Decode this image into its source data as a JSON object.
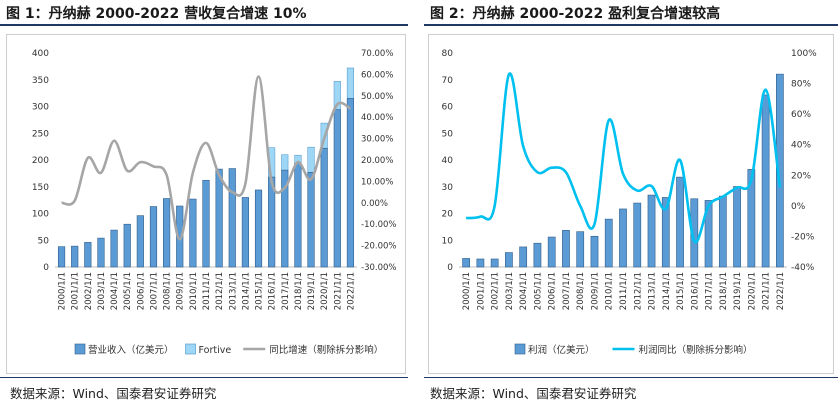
{
  "left": {
    "title": "图 1：丹纳赫 2000-2022 营收复合增速 10%",
    "source": "数据来源：Wind、国泰君安证券研究",
    "chart_data": {
      "type": "bar",
      "categories": [
        "2000/1/1",
        "2001/1/1",
        "2002/1/1",
        "2003/1/1",
        "2004/1/1",
        "2005/1/1",
        "2006/1/1",
        "2007/1/1",
        "2008/1/1",
        "2009/1/1",
        "2010/1/1",
        "2011/1/1",
        "2012/1/1",
        "2013/1/1",
        "2014/1/1",
        "2015/1/1",
        "2016/1/1",
        "2017/1/1",
        "2018/1/1",
        "2019/1/1",
        "2020/1/1",
        "2021/1/1",
        "2022/1/1"
      ],
      "ylim": [
        0,
        400
      ],
      "y_ticks": [
        "0",
        "50",
        "100",
        "150",
        "200",
        "250",
        "300",
        "350",
        "400"
      ],
      "y2lim": [
        -0.3,
        0.7
      ],
      "y2_ticks": [
        "-30.00%",
        "-20.00%",
        "-10.00%",
        "0.00%",
        "10.00%",
        "20.00%",
        "30.00%",
        "40.00%",
        "50.00%",
        "60.00%",
        "70.00%"
      ],
      "series": [
        {
          "name": "营业收入（亿美元）",
          "type": "bar",
          "axis": "left",
          "color": "#5b9bd5",
          "values": [
            38,
            39,
            46,
            54,
            69,
            80,
            96,
            113,
            128,
            114,
            127,
            162,
            183,
            184,
            130,
            144,
            168,
            181,
            194,
            177,
            222,
            294,
            315
          ]
        },
        {
          "name": "Fortive",
          "type": "bar-stack",
          "axis": "left",
          "color": "#9dd7f5",
          "values": [
            0,
            0,
            0,
            0,
            0,
            0,
            0,
            0,
            0,
            0,
            0,
            0,
            0,
            0,
            0,
            0,
            55,
            29,
            15,
            47,
            47,
            53,
            57
          ]
        },
        {
          "name": "同比增速（剔除拆分影响）",
          "type": "line",
          "axis": "right",
          "color": "#a6a6a6",
          "values": [
            0.0,
            0.01,
            0.21,
            0.14,
            0.29,
            0.15,
            0.19,
            0.17,
            0.13,
            -0.17,
            0.14,
            0.28,
            0.13,
            0.05,
            0.09,
            0.59,
            0.1,
            0.07,
            0.19,
            0.11,
            0.3,
            0.46,
            0.44
          ]
        }
      ]
    }
  },
  "right": {
    "title": "图 2：丹纳赫 2000-2022 盈利复合增速较高",
    "source": "数据来源：Wind、国泰君安证券研究",
    "chart_data": {
      "type": "bar",
      "categories": [
        "2000/1/1",
        "2001/1/1",
        "2002/1/1",
        "2003/1/1",
        "2004/1/1",
        "2005/1/1",
        "2006/1/1",
        "2007/1/1",
        "2008/1/1",
        "2009/1/1",
        "2010/1/1",
        "2011/1/1",
        "2012/1/1",
        "2013/1/1",
        "2014/1/1",
        "2015/1/1",
        "2016/1/1",
        "2017/1/1",
        "2018/1/1",
        "2019/1/1",
        "2020/1/1",
        "2021/1/1",
        "2022/1/1"
      ],
      "ylim": [
        0,
        80
      ],
      "y_ticks": [
        "0",
        "10",
        "20",
        "30",
        "40",
        "50",
        "60",
        "70",
        "80"
      ],
      "y2lim": [
        -0.4,
        1.0
      ],
      "y2_ticks": [
        "-40%",
        "-20%",
        "0%",
        "20%",
        "40%",
        "60%",
        "80%",
        "100%"
      ],
      "series": [
        {
          "name": "利润（亿美元）",
          "type": "bar",
          "axis": "left",
          "color": "#5b9bd5",
          "values": [
            3.2,
            3.0,
            3.0,
            5.4,
            7.5,
            8.9,
            11.2,
            13.7,
            13.2,
            11.5,
            17.9,
            21.7,
            23.9,
            26.9,
            26.0,
            33.6,
            25.5,
            24.9,
            26.5,
            30.1,
            36.5,
            64.3,
            72.1
          ]
        },
        {
          "name": "利润同比（剔除拆分影响）",
          "type": "line",
          "axis": "right",
          "color": "#00c0f0",
          "values": [
            -0.08,
            -0.07,
            0.0,
            0.86,
            0.39,
            0.22,
            0.25,
            0.22,
            0.0,
            -0.12,
            0.56,
            0.21,
            0.1,
            0.13,
            -0.02,
            0.3,
            -0.23,
            0.0,
            0.06,
            0.12,
            0.17,
            0.76,
            0.12
          ]
        }
      ]
    }
  }
}
